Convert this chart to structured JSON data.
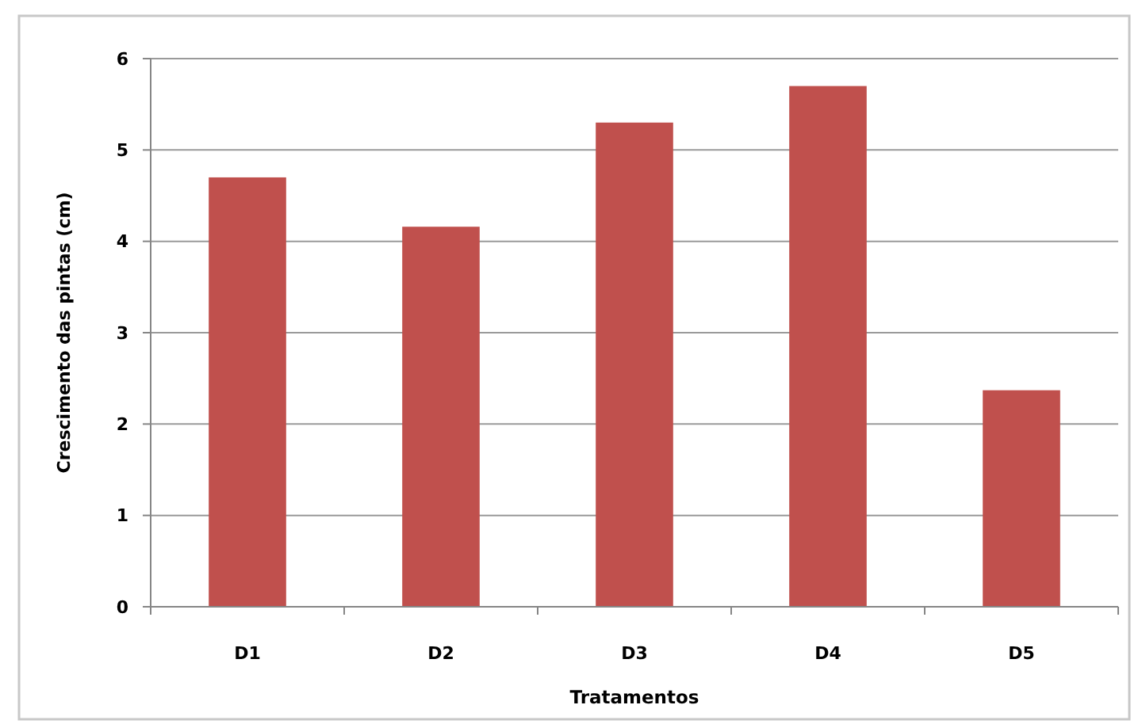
{
  "chart_data": {
    "type": "bar",
    "xlabel": "Tratamentos",
    "ylabel": "Crescimento das pintas (cm)",
    "categories": [
      "D1",
      "D2",
      "D3",
      "D4",
      "D5"
    ],
    "values": [
      4.7,
      4.16,
      5.3,
      5.7,
      2.37
    ],
    "color": "#c0504d",
    "ylim": [
      0,
      6
    ],
    "yticks": [
      0,
      1,
      2,
      3,
      4,
      5,
      6
    ],
    "grid": "y"
  }
}
